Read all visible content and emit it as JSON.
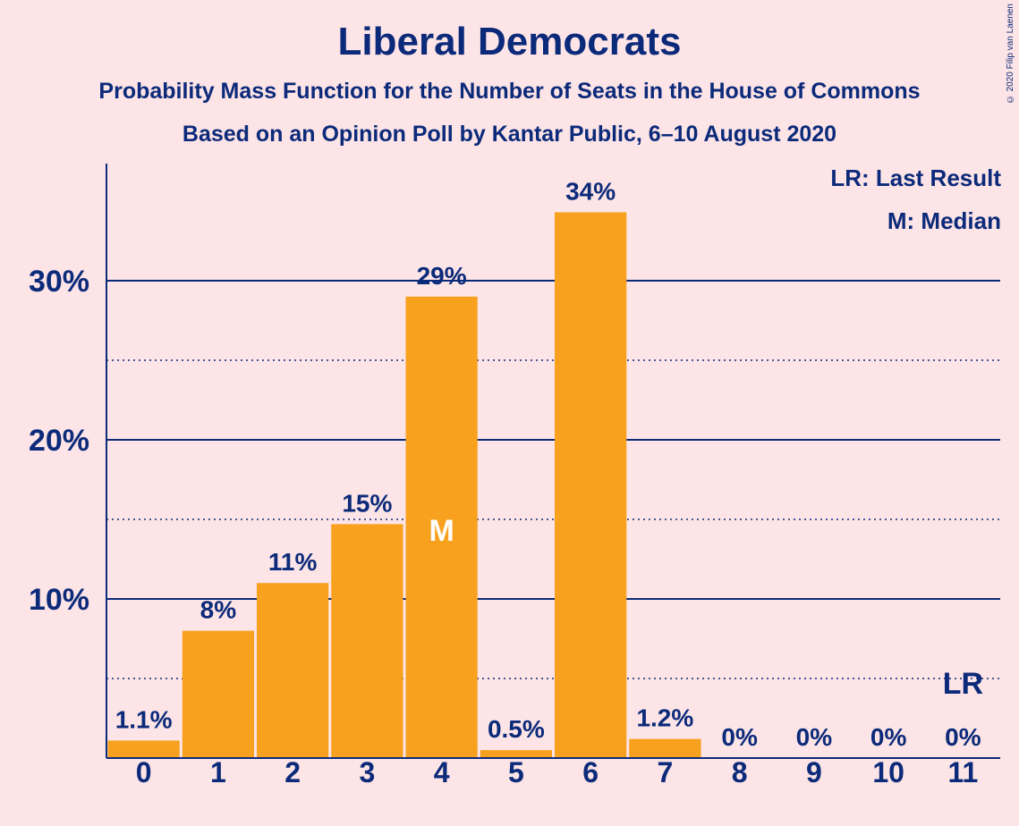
{
  "title": "Liberal Democrats",
  "subtitle1": "Probability Mass Function for the Number of Seats in the House of Commons",
  "subtitle2": "Based on an Opinion Poll by Kantar Public, 6–10 August 2020",
  "copyright": "© 2020 Filip van Laenen",
  "legend": {
    "last_result": "LR: Last Result",
    "median": "M: Median"
  },
  "colors": {
    "background": "#fde4e6",
    "bar": "#f8a11f",
    "text": "#0b2a7a",
    "grid": "#0b2a7a"
  },
  "chart_data": {
    "type": "bar",
    "categories": [
      "0",
      "1",
      "2",
      "3",
      "4",
      "5",
      "6",
      "7",
      "8",
      "9",
      "10",
      "11"
    ],
    "values": [
      1.1,
      8,
      11,
      14.7,
      29,
      0.5,
      34.3,
      1.2,
      0,
      0,
      0,
      0
    ],
    "data_labels": [
      "1.1%",
      "8%",
      "11%",
      "15%",
      "29%",
      "0.5%",
      "34%",
      "1.2%",
      "0%",
      "0%",
      "0%",
      "0%"
    ],
    "y_ticks": [
      10,
      20,
      30
    ],
    "y_tick_labels": [
      "10%",
      "20%",
      "30%"
    ],
    "minor_gridlines": [
      5,
      15,
      25
    ],
    "ylim": [
      0,
      37.5
    ],
    "median_index": 4,
    "median_marker": "M",
    "last_result_index": 11,
    "last_result_marker": "LR",
    "grid": true,
    "legend_position": "top-right"
  }
}
